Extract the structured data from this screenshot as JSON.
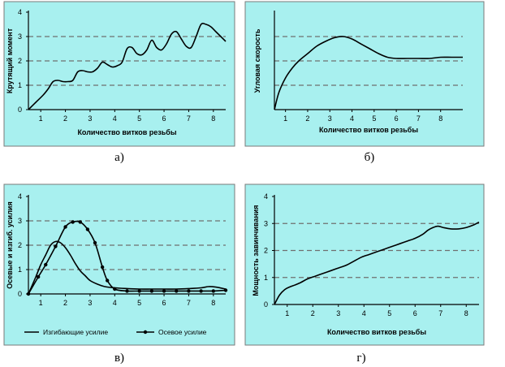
{
  "chart_data": [
    {
      "id": "a",
      "type": "line",
      "caption": "а)",
      "xlabel": "Количество витков резьбы",
      "ylabel": "Крутящий момент",
      "xlim": [
        0.5,
        8.5
      ],
      "ylim": [
        0,
        4
      ],
      "xticks": [
        1,
        2,
        3,
        4,
        5,
        6,
        7,
        8
      ],
      "yticks": [
        0,
        1,
        2,
        3,
        4
      ],
      "grid_y": [
        1,
        2,
        3
      ],
      "legend": [],
      "series": [
        {
          "name": "Крутящий момент",
          "marker": false,
          "x": [
            0.5,
            0.8,
            1.1,
            1.3,
            1.5,
            1.7,
            1.9,
            2.1,
            2.3,
            2.5,
            2.7,
            2.9,
            3.1,
            3.3,
            3.5,
            3.7,
            3.9,
            4.1,
            4.3,
            4.5,
            4.7,
            4.9,
            5.1,
            5.3,
            5.5,
            5.7,
            5.9,
            6.1,
            6.3,
            6.5,
            6.7,
            6.9,
            7.1,
            7.3,
            7.5,
            7.7,
            7.9,
            8.1,
            8.3,
            8.5
          ],
          "y": [
            0.0,
            0.3,
            0.6,
            0.85,
            1.15,
            1.2,
            1.15,
            1.15,
            1.2,
            1.55,
            1.6,
            1.55,
            1.55,
            1.7,
            1.95,
            1.85,
            1.75,
            1.8,
            1.95,
            2.5,
            2.55,
            2.3,
            2.25,
            2.45,
            2.85,
            2.55,
            2.45,
            2.7,
            3.1,
            3.2,
            2.9,
            2.6,
            2.55,
            3.0,
            3.5,
            3.5,
            3.4,
            3.2,
            3.0,
            2.8
          ]
        }
      ]
    },
    {
      "id": "b",
      "type": "line",
      "caption": "б)",
      "xlabel": "Количество витков резьбы",
      "ylabel": "Угловая скорость",
      "xlim": [
        0.5,
        9
      ],
      "ylim": [
        0,
        4
      ],
      "xticks": [
        1,
        2,
        3,
        4,
        5,
        6,
        7,
        8
      ],
      "yticks": [],
      "grid_y": [
        1,
        2,
        3
      ],
      "legend": [],
      "series": [
        {
          "name": "Угловая скорость",
          "marker": false,
          "x": [
            0.5,
            0.7,
            1.0,
            1.3,
            1.6,
            2.0,
            2.4,
            2.8,
            3.2,
            3.6,
            4.0,
            4.4,
            4.8,
            5.2,
            5.6,
            6.0,
            6.5,
            7.0,
            7.5,
            8.0,
            8.5,
            9.0
          ],
          "y": [
            0.0,
            0.7,
            1.3,
            1.7,
            2.0,
            2.3,
            2.6,
            2.8,
            2.95,
            3.0,
            2.9,
            2.7,
            2.5,
            2.3,
            2.15,
            2.1,
            2.1,
            2.1,
            2.1,
            2.15,
            2.15,
            2.15
          ]
        }
      ]
    },
    {
      "id": "v",
      "type": "line",
      "caption": "в)",
      "xlabel": "",
      "ylabel": "Осевые и изгиб. усилия",
      "xlim": [
        0.5,
        8.5
      ],
      "ylim": [
        0,
        4
      ],
      "xticks": [
        1,
        2,
        3,
        4,
        5,
        6,
        7,
        8
      ],
      "yticks": [
        0,
        1,
        2,
        3,
        4
      ],
      "grid_y": [
        1,
        2,
        3
      ],
      "legend": [
        "Изгибающие усилие",
        "Осевое усилие"
      ],
      "series": [
        {
          "name": "Изгибающие усилие",
          "marker": false,
          "x": [
            0.5,
            0.8,
            1.0,
            1.2,
            1.4,
            1.6,
            1.8,
            2.0,
            2.2,
            2.4,
            2.6,
            2.8,
            3.0,
            3.3,
            3.6,
            4.0,
            4.5,
            5.0,
            5.5,
            6.0,
            6.5,
            7.0,
            7.5,
            7.8,
            8.1,
            8.5
          ],
          "y": [
            0.0,
            0.7,
            1.2,
            1.6,
            2.0,
            2.15,
            2.1,
            1.9,
            1.6,
            1.25,
            0.95,
            0.75,
            0.55,
            0.4,
            0.3,
            0.25,
            0.22,
            0.2,
            0.2,
            0.2,
            0.2,
            0.22,
            0.25,
            0.3,
            0.28,
            0.2
          ]
        },
        {
          "name": "Осевое усилие",
          "marker": true,
          "x": [
            0.5,
            0.9,
            1.2,
            1.6,
            2.0,
            2.3,
            2.6,
            2.9,
            3.2,
            3.5,
            3.7,
            4.0,
            4.5,
            5.0,
            5.5,
            6.0,
            6.5,
            7.0,
            7.5,
            8.0,
            8.5
          ],
          "y": [
            0.0,
            0.7,
            1.2,
            1.95,
            2.75,
            2.95,
            2.95,
            2.65,
            2.1,
            1.1,
            0.55,
            0.2,
            0.12,
            0.12,
            0.12,
            0.12,
            0.12,
            0.12,
            0.12,
            0.12,
            0.15
          ]
        }
      ]
    },
    {
      "id": "g",
      "type": "line",
      "caption": "г)",
      "xlabel": "Количество витков резьбы",
      "ylabel": "Мощность завинчивания",
      "xlim": [
        0.5,
        8.5
      ],
      "ylim": [
        0,
        4
      ],
      "xticks": [
        1,
        2,
        3,
        4,
        5,
        6,
        7,
        8
      ],
      "yticks": [
        0,
        1,
        2,
        3,
        4
      ],
      "grid_y": [
        1,
        2,
        3
      ],
      "legend": [],
      "series": [
        {
          "name": "Мощность завинчивания",
          "marker": false,
          "x": [
            0.5,
            0.7,
            0.9,
            1.1,
            1.3,
            1.5,
            1.8,
            2.1,
            2.4,
            2.7,
            3.0,
            3.3,
            3.6,
            3.9,
            4.2,
            4.5,
            4.8,
            5.1,
            5.4,
            5.7,
            6.0,
            6.3,
            6.5,
            6.7,
            6.9,
            7.1,
            7.4,
            7.7,
            8.0,
            8.3,
            8.5
          ],
          "y": [
            0.0,
            0.35,
            0.55,
            0.65,
            0.72,
            0.8,
            0.95,
            1.05,
            1.15,
            1.25,
            1.35,
            1.45,
            1.6,
            1.75,
            1.85,
            1.95,
            2.05,
            2.15,
            2.25,
            2.35,
            2.45,
            2.6,
            2.75,
            2.85,
            2.9,
            2.85,
            2.8,
            2.8,
            2.85,
            2.95,
            3.05
          ]
        }
      ]
    }
  ]
}
